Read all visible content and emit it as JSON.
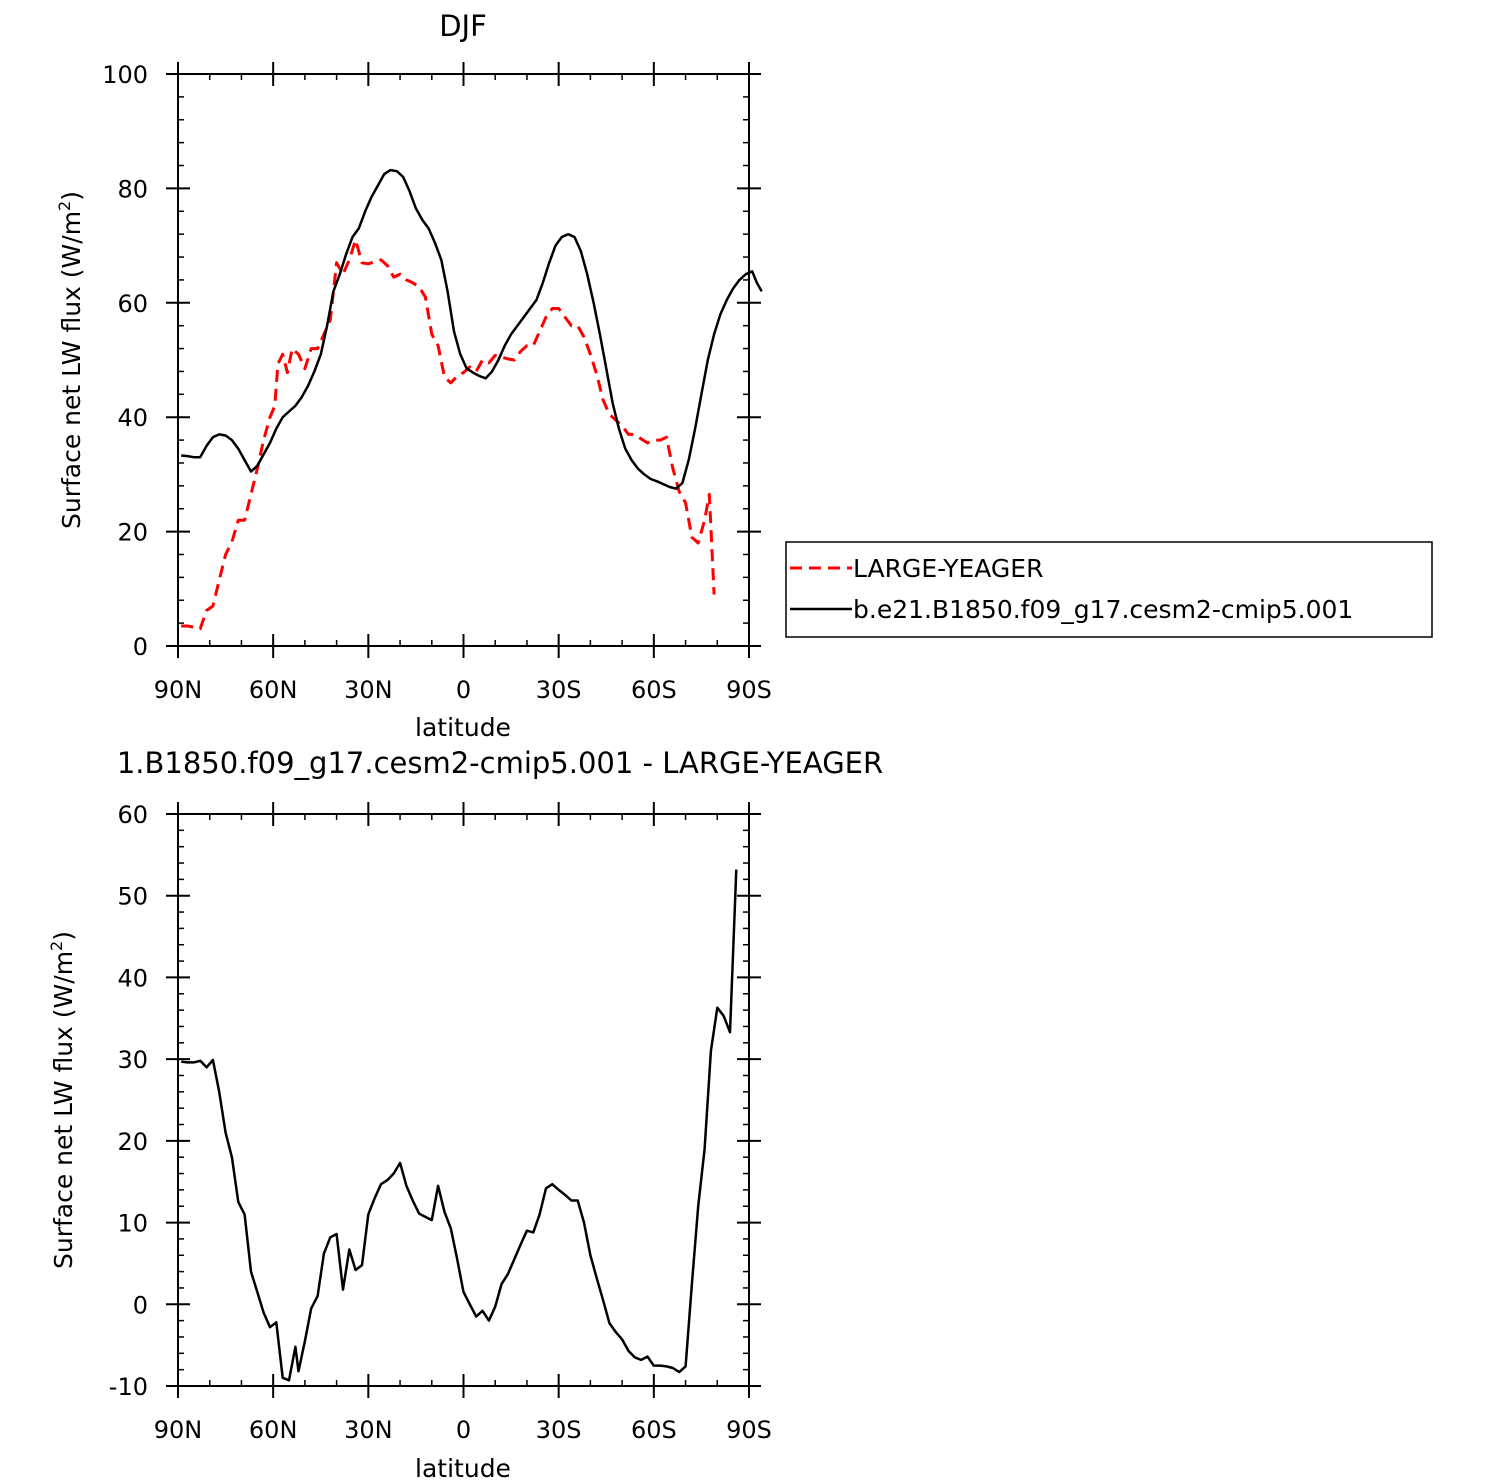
{
  "chart_data": [
    {
      "type": "line",
      "title": "DJF",
      "xlabel": "latitude",
      "ylabel": "Surface net LW flux (W/m",
      "ylabel_sup": "2",
      "ylabel_close": ")",
      "xlim": [
        90,
        -90
      ],
      "ylim": [
        0,
        100
      ],
      "xticks": [
        90,
        60,
        30,
        0,
        -30,
        -60,
        -90
      ],
      "xtick_labels": [
        "90N",
        "60N",
        "30N",
        "0",
        "30S",
        "60S",
        "90S"
      ],
      "yticks": [
        0,
        20,
        40,
        60,
        80,
        100
      ],
      "ytick_labels": [
        "0",
        "20",
        "40",
        "60",
        "80",
        "100"
      ],
      "legend_position": "right",
      "series": [
        {
          "name": "LARGE-YEAGER",
          "color": "#ff0000",
          "dash": "dashed",
          "points": [
            [
              89,
              3.5
            ],
            [
              87,
              3.5
            ],
            [
              85,
              3.3
            ],
            [
              83,
              3
            ],
            [
              81,
              6.2
            ],
            [
              79,
              7
            ],
            [
              77,
              11.5
            ],
            [
              75,
              16
            ],
            [
              73,
              18.2
            ],
            [
              71,
              22
            ],
            [
              69,
              22
            ],
            [
              67,
              26.5
            ],
            [
              65,
              31
            ],
            [
              63,
              36
            ],
            [
              61,
              40
            ],
            [
              59.5,
              42
            ],
            [
              58.5,
              49.3
            ],
            [
              57,
              51
            ],
            [
              55.5,
              47.8
            ],
            [
              54,
              52
            ],
            [
              52,
              51
            ],
            [
              50,
              48.5
            ],
            [
              48,
              52
            ],
            [
              46,
              52
            ],
            [
              44,
              54.5
            ],
            [
              42,
              57
            ],
            [
              40,
              67
            ],
            [
              38,
              65
            ],
            [
              36,
              67.5
            ],
            [
              34,
              71
            ],
            [
              32,
              67
            ],
            [
              30,
              66.8
            ],
            [
              28,
              67.2
            ],
            [
              26,
              67.5
            ],
            [
              24,
              66.5
            ],
            [
              22,
              64.5
            ],
            [
              20,
              65
            ],
            [
              18,
              64
            ],
            [
              16,
              63.5
            ],
            [
              14,
              62.8
            ],
            [
              12,
              61
            ],
            [
              10,
              54.5
            ],
            [
              8,
              52.5
            ],
            [
              6,
              47
            ],
            [
              4,
              46
            ],
            [
              2,
              47.2
            ],
            [
              0,
              47.8
            ],
            [
              -2,
              48.8
            ],
            [
              -4,
              48
            ],
            [
              -6,
              50
            ],
            [
              -8,
              49.5
            ],
            [
              -10,
              50.8
            ],
            [
              -12,
              50.5
            ],
            [
              -14,
              50.2
            ],
            [
              -16,
              50
            ],
            [
              -18,
              51.5
            ],
            [
              -20,
              52.5
            ],
            [
              -22,
              52.5
            ],
            [
              -24,
              55
            ],
            [
              -26,
              57.5
            ],
            [
              -28,
              59
            ],
            [
              -30,
              59
            ],
            [
              -32,
              57.5
            ],
            [
              -34,
              56
            ],
            [
              -36,
              56
            ],
            [
              -38,
              54
            ],
            [
              -40,
              51
            ],
            [
              -42,
              47.5
            ],
            [
              -44,
              43
            ],
            [
              -46,
              40.5
            ],
            [
              -48,
              39.5
            ],
            [
              -50,
              38.5
            ],
            [
              -52,
              37
            ],
            [
              -54,
              37
            ],
            [
              -56,
              36.2
            ],
            [
              -58,
              35.5
            ],
            [
              -60,
              36
            ],
            [
              -62,
              36
            ],
            [
              -64,
              36.5
            ],
            [
              -66,
              31
            ],
            [
              -68,
              27
            ],
            [
              -70,
              25
            ],
            [
              -72,
              19
            ],
            [
              -74,
              18
            ],
            [
              -76,
              22
            ],
            [
              -77.5,
              26.5
            ],
            [
              -79,
              9
            ]
          ]
        },
        {
          "name": "b.e21.B1850.f09_g17.cesm2-cmip5.001",
          "color": "#000000",
          "dash": "solid",
          "points": [
            [
              89,
              33.3
            ],
            [
              87,
              33.2
            ],
            [
              85,
              33
            ],
            [
              83,
              33
            ],
            [
              81,
              35
            ],
            [
              79,
              36.5
            ],
            [
              77,
              37
            ],
            [
              75,
              36.8
            ],
            [
              73,
              36
            ],
            [
              71,
              34.5
            ],
            [
              69,
              32.5
            ],
            [
              67,
              30.5
            ],
            [
              65,
              31.5
            ],
            [
              63,
              33.5
            ],
            [
              61,
              35.5
            ],
            [
              59,
              38
            ],
            [
              57,
              40
            ],
            [
              55,
              41
            ],
            [
              53,
              42
            ],
            [
              51,
              43.5
            ],
            [
              49,
              45.5
            ],
            [
              47,
              48
            ],
            [
              45,
              51
            ],
            [
              43,
              56
            ],
            [
              41,
              62
            ],
            [
              39,
              65
            ],
            [
              37,
              68.5
            ],
            [
              35,
              71.5
            ],
            [
              33,
              73
            ],
            [
              31,
              76
            ],
            [
              29,
              78.5
            ],
            [
              27,
              80.5
            ],
            [
              25,
              82.5
            ],
            [
              23,
              83.2
            ],
            [
              21,
              83
            ],
            [
              19,
              82
            ],
            [
              17,
              79.5
            ],
            [
              15,
              76.5
            ],
            [
              13,
              74.5
            ],
            [
              11,
              73
            ],
            [
              9,
              70.5
            ],
            [
              7,
              67.5
            ],
            [
              5,
              62
            ],
            [
              3,
              55
            ],
            [
              1,
              51
            ],
            [
              -1,
              48.5
            ],
            [
              -3,
              47.8
            ],
            [
              -5,
              47.2
            ],
            [
              -7,
              46.8
            ],
            [
              -9,
              48
            ],
            [
              -11,
              50
            ],
            [
              -13,
              52.5
            ],
            [
              -15,
              54.5
            ],
            [
              -17,
              56
            ],
            [
              -19,
              57.5
            ],
            [
              -21,
              59
            ],
            [
              -23,
              60.5
            ],
            [
              -25,
              63.5
            ],
            [
              -27,
              67
            ],
            [
              -29,
              70
            ],
            [
              -31,
              71.5
            ],
            [
              -33,
              72
            ],
            [
              -35,
              71.5
            ],
            [
              -37,
              69
            ],
            [
              -39,
              65
            ],
            [
              -41,
              60
            ],
            [
              -43,
              54.5
            ],
            [
              -45,
              48.5
            ],
            [
              -47,
              42.5
            ],
            [
              -49,
              38
            ],
            [
              -51,
              34.5
            ],
            [
              -53,
              32.5
            ],
            [
              -55,
              31
            ],
            [
              -57,
              30
            ],
            [
              -59,
              29.2
            ],
            [
              -61,
              28.8
            ],
            [
              -63,
              28.3
            ],
            [
              -65,
              27.8
            ],
            [
              -67,
              27.5
            ],
            [
              -69,
              28.5
            ],
            [
              -71,
              32.5
            ],
            [
              -73,
              38
            ],
            [
              -75,
              44
            ],
            [
              -77,
              50
            ],
            [
              -79,
              54.5
            ],
            [
              -81,
              58
            ],
            [
              -83,
              60.5
            ],
            [
              -85,
              62.5
            ],
            [
              -87,
              64
            ],
            [
              -89,
              65
            ],
            [
              -91,
              65.5
            ],
            [
              -92.5,
              63.5
            ],
            [
              -94,
              62
            ]
          ]
        }
      ]
    },
    {
      "type": "line",
      "title": "1.B1850.f09_g17.cesm2-cmip5.001 - LARGE-YEAGER",
      "xlabel": "latitude",
      "ylabel": "Surface net LW flux (W/m",
      "ylabel_sup": "2",
      "ylabel_close": ")",
      "xlim": [
        90,
        -90
      ],
      "ylim": [
        -10,
        60
      ],
      "xticks": [
        90,
        60,
        30,
        0,
        -30,
        -60,
        -90
      ],
      "xtick_labels": [
        "90N",
        "60N",
        "30N",
        "0",
        "30S",
        "60S",
        "90S"
      ],
      "yticks": [
        -10,
        0,
        10,
        20,
        30,
        40,
        50,
        60
      ],
      "ytick_labels": [
        "-10",
        "0",
        "10",
        "20",
        "30",
        "40",
        "50",
        "60"
      ],
      "series": [
        {
          "color": "#000000",
          "dash": "solid",
          "points": [
            [
              89,
              29.7
            ],
            [
              87,
              29.6
            ],
            [
              85,
              29.6
            ],
            [
              83,
              29.8
            ],
            [
              81,
              29
            ],
            [
              79,
              29.9
            ],
            [
              77,
              26
            ],
            [
              75,
              21
            ],
            [
              73,
              18
            ],
            [
              71,
              12.5
            ],
            [
              69,
              11
            ],
            [
              67,
              4
            ],
            [
              65,
              1.5
            ],
            [
              63,
              -1
            ],
            [
              61,
              -2.8
            ],
            [
              59,
              -2.2
            ],
            [
              57,
              -9
            ],
            [
              55,
              -9.3
            ],
            [
              53,
              -5.2
            ],
            [
              52,
              -8.2
            ],
            [
              50,
              -4.5
            ],
            [
              48,
              -0.5
            ],
            [
              46,
              1
            ],
            [
              44,
              6.2
            ],
            [
              42,
              8.2
            ],
            [
              40,
              8.6
            ],
            [
              38,
              1.8
            ],
            [
              36,
              6.7
            ],
            [
              34,
              4.2
            ],
            [
              32,
              4.8
            ],
            [
              30,
              11
            ],
            [
              28,
              13
            ],
            [
              26,
              14.7
            ],
            [
              24,
              15.2
            ],
            [
              22,
              16
            ],
            [
              20,
              17.3
            ],
            [
              18,
              14.5
            ],
            [
              16,
              12.7
            ],
            [
              14,
              11.1
            ],
            [
              12,
              10.7
            ],
            [
              10,
              10.3
            ],
            [
              8,
              14.5
            ],
            [
              6,
              11.3
            ],
            [
              4,
              9.3
            ],
            [
              2,
              5.5
            ],
            [
              0,
              1.5
            ],
            [
              -2,
              0
            ],
            [
              -4,
              -1.5
            ],
            [
              -6,
              -0.8
            ],
            [
              -8,
              -2
            ],
            [
              -10,
              -0.3
            ],
            [
              -12,
              2.5
            ],
            [
              -14,
              3.7
            ],
            [
              -16,
              5.5
            ],
            [
              -18,
              7.3
            ],
            [
              -20,
              9
            ],
            [
              -22,
              8.8
            ],
            [
              -24,
              11
            ],
            [
              -26,
              14.2
            ],
            [
              -28,
              14.7
            ],
            [
              -30,
              14
            ],
            [
              -32,
              13.4
            ],
            [
              -34,
              12.7
            ],
            [
              -36,
              12.7
            ],
            [
              -38,
              10
            ],
            [
              -40,
              6
            ],
            [
              -42,
              3.2
            ],
            [
              -44,
              0.5
            ],
            [
              -46,
              -2.3
            ],
            [
              -48,
              -3.4
            ],
            [
              -50,
              -4.3
            ],
            [
              -52,
              -5.7
            ],
            [
              -54,
              -6.5
            ],
            [
              -56,
              -6.8
            ],
            [
              -58,
              -6.4
            ],
            [
              -60,
              -7.5
            ],
            [
              -62,
              -7.5
            ],
            [
              -64,
              -7.6
            ],
            [
              -66,
              -7.8
            ],
            [
              -68,
              -8.3
            ],
            [
              -70,
              -7.6
            ],
            [
              -72,
              2.5
            ],
            [
              -74,
              12
            ],
            [
              -76,
              19
            ],
            [
              -78,
              31
            ],
            [
              -80,
              36.3
            ],
            [
              -82,
              35.3
            ],
            [
              -84,
              33.3
            ],
            [
              -86,
              53.2
            ]
          ]
        }
      ]
    }
  ]
}
